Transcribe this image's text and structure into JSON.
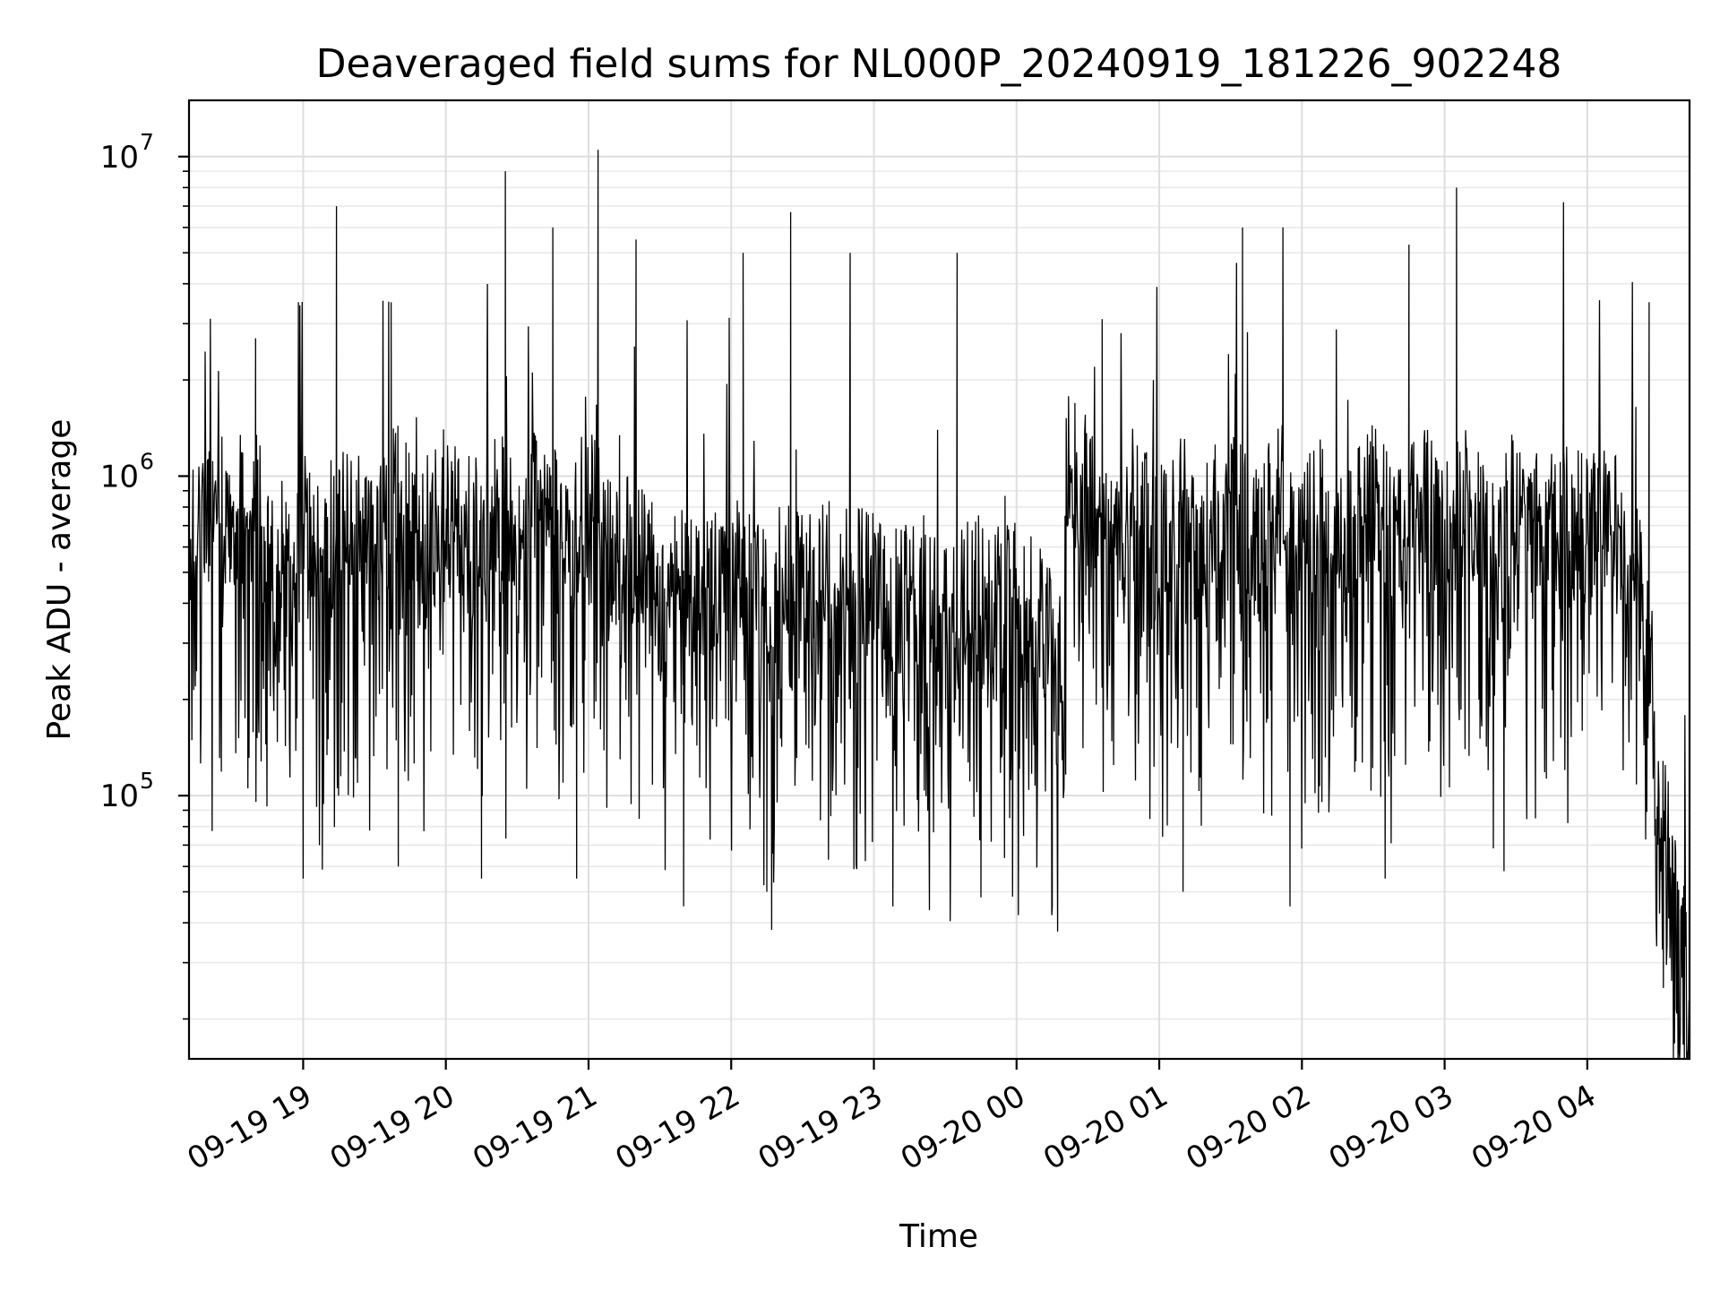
{
  "chart_data": {
    "type": "line",
    "title": "Deaveraged field sums for NL000P_20240919_181226_902248",
    "xlabel": "Time",
    "ylabel": "Peak ADU - average",
    "yscale": "log",
    "ylim": [
      15000,
      15000000
    ],
    "xlim": [
      "09-19 18:12",
      "09-20 04:43"
    ],
    "grid": true,
    "line_color": "#000000",
    "x_ticks": [
      "09-19 19",
      "09-19 20",
      "09-19 21",
      "09-19 22",
      "09-19 23",
      "09-20 00",
      "09-20 01",
      "09-20 02",
      "09-20 03",
      "09-20 04"
    ],
    "y_ticks": [
      {
        "base": "10",
        "exp": "5",
        "value": 100000
      },
      {
        "base": "10",
        "exp": "6",
        "value": 1000000
      },
      {
        "base": "10",
        "exp": "7",
        "value": 10000000
      }
    ],
    "series": [
      {
        "values": [
          {
            "x": "09-19 18:12",
            "y": 550000
          },
          {
            "x": "09-19 18:20",
            "y": 620000
          },
          {
            "x": "09-19 18:30",
            "y": 650000
          },
          {
            "x": "09-19 18:40",
            "y": 700000
          },
          {
            "x": "09-19 18:50",
            "y": 350000
          },
          {
            "x": "09-19 19:00",
            "y": 650000
          },
          {
            "x": "09-19 19:10",
            "y": 450000
          },
          {
            "x": "09-19 19:20",
            "y": 700000
          },
          {
            "x": "09-19 19:30",
            "y": 500000
          },
          {
            "x": "09-19 19:40",
            "y": 750000
          },
          {
            "x": "09-19 19:50",
            "y": 500000
          },
          {
            "x": "09-19 20:00",
            "y": 700000
          },
          {
            "x": "09-19 20:10",
            "y": 500000
          },
          {
            "x": "09-19 20:20",
            "y": 750000
          },
          {
            "x": "09-19 20:30",
            "y": 500000
          },
          {
            "x": "09-19 20:40",
            "y": 750000
          },
          {
            "x": "09-19 20:50",
            "y": 500000
          },
          {
            "x": "09-19 21:00",
            "y": 700000
          },
          {
            "x": "09-19 21:10",
            "y": 450000
          },
          {
            "x": "09-19 21:20",
            "y": 500000
          },
          {
            "x": "09-19 21:30",
            "y": 300000
          },
          {
            "x": "09-19 21:40",
            "y": 400000
          },
          {
            "x": "09-19 21:50",
            "y": 350000
          },
          {
            "x": "09-19 22:00",
            "y": 420000
          },
          {
            "x": "09-19 22:10",
            "y": 360000
          },
          {
            "x": "09-19 22:20",
            "y": 420000
          },
          {
            "x": "09-19 22:30",
            "y": 380000
          },
          {
            "x": "09-19 22:40",
            "y": 420000
          },
          {
            "x": "09-19 22:50",
            "y": 370000
          },
          {
            "x": "09-19 23:00",
            "y": 400000
          },
          {
            "x": "09-19 23:10",
            "y": 330000
          },
          {
            "x": "09-19 23:20",
            "y": 380000
          },
          {
            "x": "09-19 23:30",
            "y": 320000
          },
          {
            "x": "09-19 23:40",
            "y": 380000
          },
          {
            "x": "09-19 23:50",
            "y": 330000
          },
          {
            "x": "09-20 00:00",
            "y": 350000
          },
          {
            "x": "09-20 00:10",
            "y": 300000
          },
          {
            "x": "09-20 00:20",
            "y": 200000
          },
          {
            "x": "09-20 00:21",
            "y": 900000
          },
          {
            "x": "09-20 00:30",
            "y": 750000
          },
          {
            "x": "09-20 00:40",
            "y": 500000
          },
          {
            "x": "09-20 00:50",
            "y": 750000
          },
          {
            "x": "09-20 01:00",
            "y": 500000
          },
          {
            "x": "09-20 01:10",
            "y": 750000
          },
          {
            "x": "09-20 01:20",
            "y": 550000
          },
          {
            "x": "09-20 01:30",
            "y": 700000
          },
          {
            "x": "09-20 01:40",
            "y": 500000
          },
          {
            "x": "09-20 01:50",
            "y": 750000
          },
          {
            "x": "09-20 02:00",
            "y": 500000
          },
          {
            "x": "09-20 02:10",
            "y": 720000
          },
          {
            "x": "09-20 02:20",
            "y": 550000
          },
          {
            "x": "09-20 02:30",
            "y": 700000
          },
          {
            "x": "09-20 02:40",
            "y": 500000
          },
          {
            "x": "09-20 02:50",
            "y": 720000
          },
          {
            "x": "09-20 03:00",
            "y": 550000
          },
          {
            "x": "09-20 03:10",
            "y": 700000
          },
          {
            "x": "09-20 03:20",
            "y": 500000
          },
          {
            "x": "09-20 03:30",
            "y": 720000
          },
          {
            "x": "09-20 03:40",
            "y": 550000
          },
          {
            "x": "09-20 03:50",
            "y": 700000
          },
          {
            "x": "09-20 04:00",
            "y": 550000
          },
          {
            "x": "09-20 04:10",
            "y": 650000
          },
          {
            "x": "09-20 04:20",
            "y": 450000
          },
          {
            "x": "09-20 04:27",
            "y": 250000
          },
          {
            "x": "09-20 04:30",
            "y": 70000
          },
          {
            "x": "09-20 04:36",
            "y": 50000
          },
          {
            "x": "09-20 04:42",
            "y": 30000
          },
          {
            "x": "09-20 04:43",
            "y": 20000
          }
        ],
        "spikes": [
          {
            "x": "09-19 18:40",
            "y": 2700000
          },
          {
            "x": "09-19 18:58",
            "y": 3500000
          },
          {
            "x": "09-19 19:14",
            "y": 7000000
          },
          {
            "x": "09-19 19:37",
            "y": 3500000
          },
          {
            "x": "09-19 20:25",
            "y": 9000000
          },
          {
            "x": "09-19 20:45",
            "y": 6000000
          },
          {
            "x": "09-19 21:04",
            "y": 10500000
          },
          {
            "x": "09-19 21:20",
            "y": 5500000
          },
          {
            "x": "09-19 22:05",
            "y": 5000000
          },
          {
            "x": "09-19 22:25",
            "y": 6700000
          },
          {
            "x": "09-19 22:50",
            "y": 5000000
          },
          {
            "x": "09-19 23:35",
            "y": 5000000
          },
          {
            "x": "09-20 00:36",
            "y": 3100000
          },
          {
            "x": "09-20 01:35",
            "y": 6000000
          },
          {
            "x": "09-20 01:52",
            "y": 6000000
          },
          {
            "x": "09-20 02:45",
            "y": 5300000
          },
          {
            "x": "09-20 03:05",
            "y": 8000000
          },
          {
            "x": "09-20 03:50",
            "y": 7200000
          },
          {
            "x": "09-20 04:26",
            "y": 3500000
          }
        ],
        "dips": [
          {
            "x": "09-19 19:00",
            "y": 55000
          },
          {
            "x": "09-19 19:40",
            "y": 60000
          },
          {
            "x": "09-19 20:15",
            "y": 55000
          },
          {
            "x": "09-19 20:55",
            "y": 55000
          },
          {
            "x": "09-19 21:40",
            "y": 45000
          },
          {
            "x": "09-19 22:15",
            "y": 50000
          },
          {
            "x": "09-19 22:17",
            "y": 38000
          },
          {
            "x": "09-19 23:08",
            "y": 45000
          },
          {
            "x": "09-19 23:45",
            "y": 48000
          },
          {
            "x": "09-20 00:15",
            "y": 45000
          },
          {
            "x": "09-20 01:10",
            "y": 50000
          },
          {
            "x": "09-20 01:55",
            "y": 45000
          },
          {
            "x": "09-20 02:35",
            "y": 55000
          },
          {
            "x": "09-20 03:25",
            "y": 58000
          },
          {
            "x": "09-20 04:32",
            "y": 25000
          },
          {
            "x": "09-20 04:43",
            "y": 20000
          }
        ]
      }
    ]
  }
}
